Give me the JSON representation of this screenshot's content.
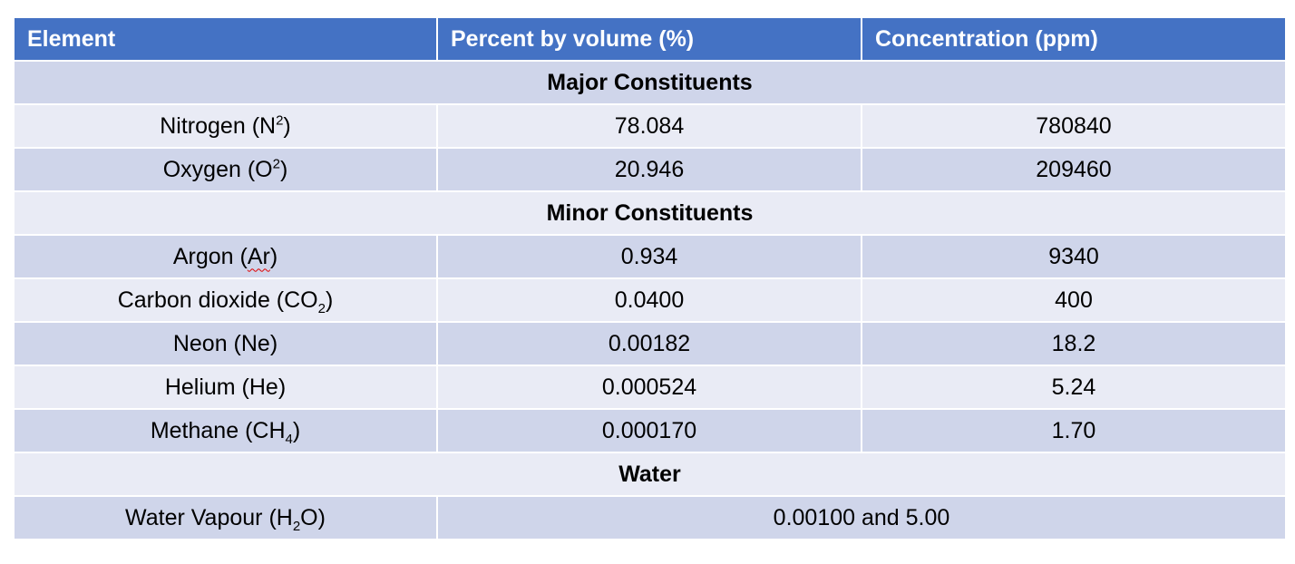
{
  "header": {
    "col1": "Element",
    "col2": "Percent by volume (%)",
    "col3": "Concentration (ppm)"
  },
  "sections": {
    "major": "Major Constituents",
    "minor": "Minor Constituents",
    "water": "Water"
  },
  "rows": [
    {
      "name_pre": "Nitrogen (N",
      "script": "2",
      "name_post": ")",
      "percent": "78.084",
      "ppm": "780840"
    },
    {
      "name_pre": "Oxygen (O",
      "script": "2",
      "name_post": ")",
      "percent": "20.946",
      "ppm": "209460"
    },
    {
      "name_pre": "Argon (",
      "mid": "Ar",
      "name_post": ")",
      "percent": "0.934",
      "ppm": "9340"
    },
    {
      "name_pre": "Carbon dioxide (CO",
      "script": "2",
      "name_post": ")",
      "percent": "0.0400",
      "ppm": "400"
    },
    {
      "name": "Neon (Ne)",
      "percent": "0.00182",
      "ppm": "18.2"
    },
    {
      "name": "Helium (He)",
      "percent": "0.000524",
      "ppm": "5.24"
    },
    {
      "name_pre": "Methane (CH",
      "script": "4",
      "name_post": ")",
      "percent": "0.000170",
      "ppm": "1.70"
    },
    {
      "name_pre": "Water Vapour (H",
      "script": "2",
      "name_post": "O)",
      "combined": "0.00100 and 5.00"
    }
  ]
}
